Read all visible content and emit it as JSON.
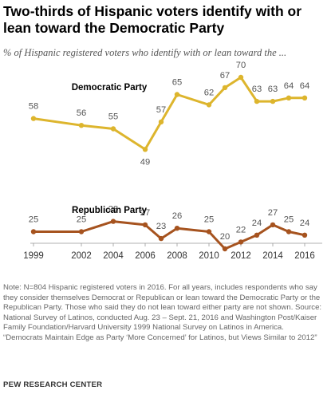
{
  "header": {
    "title": "Two-thirds of Hispanic voters identify with or lean toward the Democratic Party",
    "subtitle": "% of Hispanic registered voters who identify with or lean toward the ..."
  },
  "chart_data": {
    "type": "line",
    "title": "Two-thirds of Hispanic voters identify with or lean toward the Democratic Party",
    "subtitle": "% of Hispanic registered voters who identify with or lean toward the ...",
    "x_ticks": [
      "1999",
      "2002",
      "2004",
      "2006",
      "2008",
      "2010",
      "2012",
      "2014",
      "2016"
    ],
    "xlim": [
      1999,
      2016
    ],
    "grid": false,
    "series": [
      {
        "name": "Democratic Party",
        "color": "#DDB52D",
        "x": [
          1999,
          2002,
          2004,
          2006,
          2007,
          2008,
          2010,
          2011,
          2012,
          2013,
          2014,
          2015,
          2016
        ],
        "values": [
          58,
          56,
          55,
          49,
          57,
          65,
          62,
          67,
          70,
          63,
          63,
          64,
          64
        ]
      },
      {
        "name": "Republican Party",
        "color": "#A6531F",
        "x": [
          1999,
          2002,
          2004,
          2006,
          2007,
          2008,
          2010,
          2011,
          2012,
          2013,
          2014,
          2015,
          2016
        ],
        "values": [
          25,
          25,
          28,
          27,
          23,
          26,
          25,
          20,
          22,
          24,
          27,
          25,
          24
        ]
      }
    ]
  },
  "footer": {
    "note": "Note: N=804 Hispanic registered voters in 2016. For all years, includes respondents who say they consider themselves Democrat or Republican or lean toward the Democratic Party or the Republican Party.  Those who said they do not lean toward either party are not shown. Source: National Survey of Latinos, conducted Aug. 23 – Sept. 21, 2016 and Washington Post/Kaiser Family Foundation/Harvard University 1999 National Survey on Latinos in America.",
    "report_title": "“Democrats Maintain Edge as Party ‘More Concerned’ for Latinos, but Views Similar to 2012”",
    "brand": "PEW RESEARCH CENTER"
  }
}
